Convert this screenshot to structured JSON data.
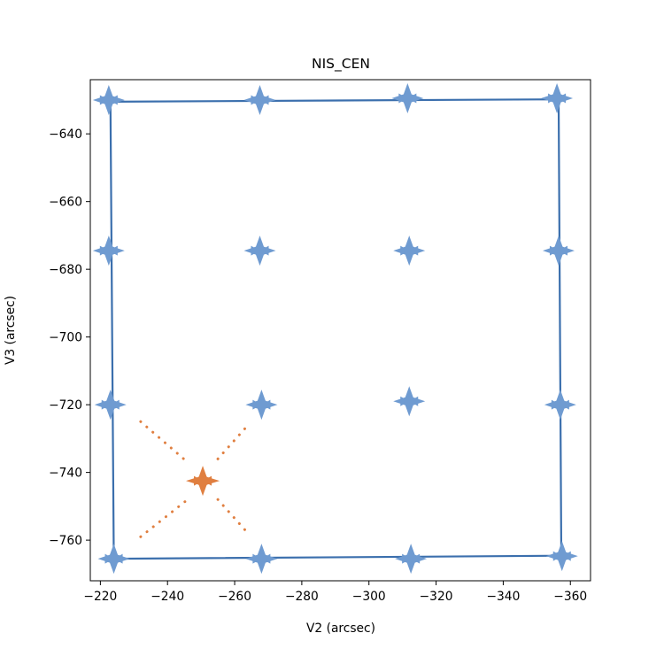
{
  "chart_data": {
    "type": "scatter",
    "title": "NIS_CEN",
    "xlabel": "V2 (arcsec)",
    "ylabel": "V3 (arcsec)",
    "xlim": [
      -217,
      -366
    ],
    "ylim": [
      -772,
      -624
    ],
    "x_inverted": true,
    "xticks": [
      -220,
      -240,
      -260,
      -280,
      -300,
      -320,
      -340,
      -360
    ],
    "yticks": [
      -760,
      -740,
      -720,
      -700,
      -680,
      -660,
      -640
    ],
    "xtick_labels": [
      "−220",
      "−240",
      "−260",
      "−280",
      "−300",
      "−320",
      "−340",
      "−360"
    ],
    "ytick_labels": [
      "−760",
      "−740",
      "−720",
      "−700",
      "−680",
      "−660",
      "−640"
    ],
    "grid": false,
    "outline": {
      "color": "#3b6fad",
      "points": [
        [
          -223,
          -630.5
        ],
        [
          -356.5,
          -629.8
        ],
        [
          -357.3,
          -764.6
        ],
        [
          -224,
          -765.5
        ],
        [
          -223,
          -630.5
        ]
      ]
    },
    "grid_points": {
      "color": "#6f9bd1",
      "marker": "star",
      "points": [
        [
          -222.5,
          -630
        ],
        [
          -267.5,
          -630
        ],
        [
          -311.5,
          -629.5
        ],
        [
          -356,
          -629.5
        ],
        [
          -222.5,
          -674.5
        ],
        [
          -267.5,
          -674.5
        ],
        [
          -312,
          -674.5
        ],
        [
          -356.5,
          -674.5
        ],
        [
          -223,
          -720
        ],
        [
          -268,
          -720
        ],
        [
          -312,
          -719
        ],
        [
          -357,
          -720
        ],
        [
          -224,
          -765.5
        ],
        [
          -268,
          -765.5
        ],
        [
          -312.5,
          -765.5
        ],
        [
          -357.5,
          -764.7
        ]
      ]
    },
    "target": {
      "color": "#e07f40",
      "marker": "star",
      "point": [
        -250.5,
        -742.5
      ]
    },
    "diagonals": {
      "color": "#e07f40",
      "style": "dotted",
      "lines": [
        [
          [
            -232,
            -725
          ],
          [
            -246,
            -737
          ]
        ],
        [
          [
            -255,
            -748
          ],
          [
            -264,
            -758
          ]
        ],
        [
          [
            -232,
            -759
          ],
          [
            -246,
            -748
          ]
        ],
        [
          [
            -255,
            -736
          ],
          [
            -264,
            -726
          ]
        ]
      ]
    }
  }
}
